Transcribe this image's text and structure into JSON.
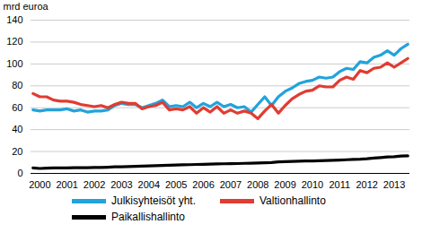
{
  "chart_data": {
    "type": "line",
    "y_label": "mrd euroa",
    "categories": [
      null,
      "2000",
      null,
      null,
      null,
      "2001",
      null,
      null,
      null,
      "2002",
      null,
      null,
      null,
      "2003",
      null,
      null,
      null,
      "2004",
      null,
      null,
      null,
      "2005",
      null,
      null,
      null,
      "2006",
      null,
      null,
      null,
      "2007",
      null,
      null,
      null,
      "2008",
      null,
      null,
      null,
      "2009",
      null,
      null,
      null,
      "2010",
      null,
      null,
      null,
      "2011",
      null,
      null,
      null,
      "2012",
      null,
      null,
      null,
      "2013",
      null,
      null
    ],
    "series": [
      {
        "name": "Julkisyhteisöt yht.",
        "color": "#21a3dc",
        "values": [
          58,
          57,
          58,
          58,
          58,
          59,
          57,
          58,
          56,
          57,
          57,
          58,
          62,
          64,
          63,
          63,
          60,
          62,
          64,
          67,
          61,
          62,
          61,
          65,
          60,
          64,
          61,
          65,
          61,
          63,
          60,
          61,
          56,
          63,
          70,
          62,
          70,
          75,
          78,
          82,
          84,
          85,
          88,
          87,
          88,
          93,
          96,
          95,
          102,
          101,
          106,
          108,
          112,
          108,
          114,
          118
        ]
      },
      {
        "name": "Valtionhallinto",
        "color": "#e03c31",
        "values": [
          73,
          70,
          70,
          67,
          66,
          66,
          65,
          63,
          62,
          61,
          62,
          60,
          63,
          65,
          64,
          64,
          59,
          61,
          62,
          65,
          58,
          59,
          58,
          61,
          55,
          60,
          56,
          61,
          55,
          58,
          55,
          57,
          55,
          50,
          57,
          63,
          55,
          62,
          68,
          72,
          75,
          76,
          80,
          79,
          79,
          85,
          88,
          86,
          94,
          92,
          96,
          97,
          101,
          97,
          101,
          105
        ]
      },
      {
        "name": "Paikallishallinto",
        "color": "#000000",
        "values": [
          5,
          4.5,
          4.8,
          5,
          5,
          5,
          5.2,
          5.3,
          5.3,
          5.4,
          5.5,
          5.7,
          6,
          6,
          6.2,
          6.5,
          6.7,
          6.8,
          7,
          7.2,
          7.5,
          7.6,
          7.8,
          8,
          8.2,
          8.3,
          8.5,
          8.7,
          8.8,
          8.9,
          9,
          9.2,
          9.3,
          9.5,
          9.8,
          10,
          10.5,
          10.8,
          11,
          11.2,
          11.3,
          11.4,
          11.6,
          11.8,
          12,
          12.2,
          12.5,
          12.8,
          13,
          13.4,
          14,
          14.5,
          15,
          15.3,
          15.8,
          16
        ]
      }
    ],
    "ylim": [
      0,
      140
    ],
    "yticks": [
      0,
      20,
      40,
      60,
      80,
      100,
      120,
      140
    ],
    "grid": true,
    "legend": "bottom"
  }
}
